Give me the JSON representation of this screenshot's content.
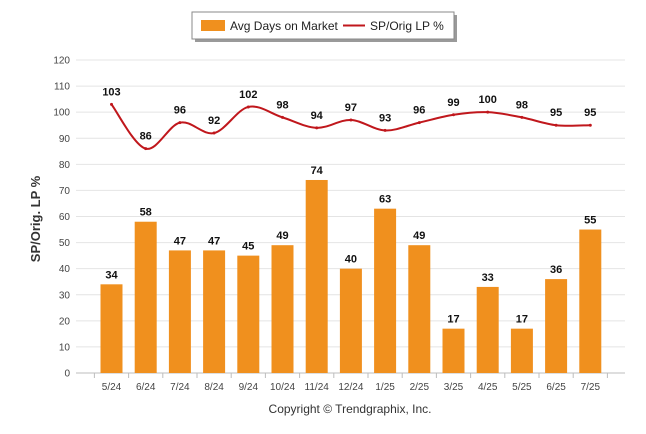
{
  "chart_data": {
    "type": "bar",
    "categories": [
      "5/24",
      "6/24",
      "7/24",
      "8/24",
      "9/24",
      "10/24",
      "11/24",
      "12/24",
      "1/25",
      "2/25",
      "3/25",
      "4/25",
      "5/25",
      "6/25",
      "7/25"
    ],
    "series": [
      {
        "name": "Avg Days on Market",
        "type": "bar",
        "color": "#f0901e",
        "values": [
          34,
          58,
          47,
          47,
          45,
          49,
          74,
          40,
          63,
          49,
          17,
          33,
          17,
          36,
          55
        ]
      },
      {
        "name": "SP/Orig LP %",
        "type": "line",
        "color": "#c0171c",
        "values": [
          103,
          86,
          96,
          92,
          102,
          98,
          94,
          97,
          93,
          96,
          99,
          100,
          98,
          95,
          95
        ]
      }
    ],
    "ylabel": "SP/Orig. LP %",
    "ylim": [
      0,
      120
    ],
    "yticks": [
      0,
      10,
      20,
      30,
      40,
      50,
      60,
      70,
      80,
      90,
      100,
      110,
      120
    ],
    "grid": true,
    "legend_position": "top-center"
  },
  "footer": {
    "copyright": "Copyright © Trendgraphix, Inc."
  }
}
